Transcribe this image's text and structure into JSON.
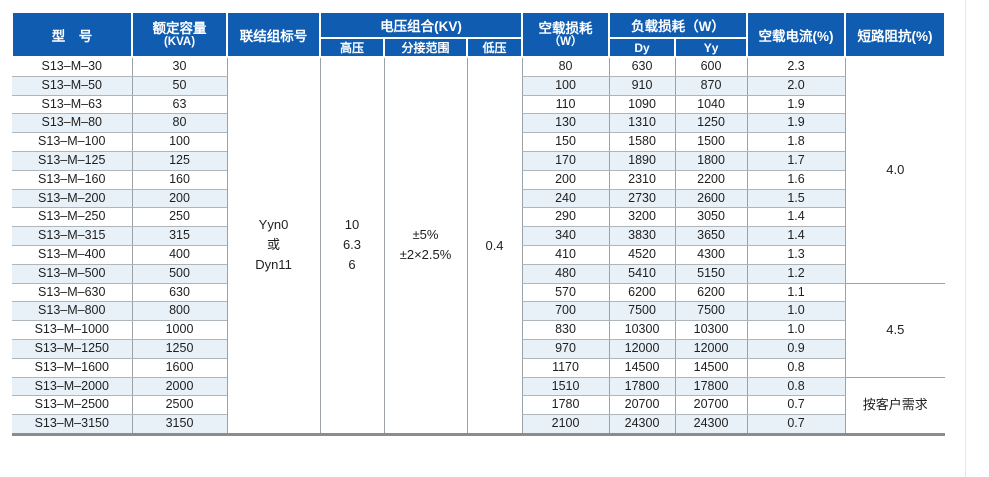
{
  "colors": {
    "header_bg": "#0f5cb0",
    "header_text": "#ffffff",
    "row_stripe": "#e8f1f8",
    "column_line": "#9aa1a7",
    "row_line": "#aeb5bb",
    "table_bottom_border": "#8c8c8c",
    "body_text": "#1f1f1f"
  },
  "table": {
    "headers": {
      "model": "型　号",
      "capacity_line1": "额定容量",
      "capacity_line2": "(KVA)",
      "vector_group": "联结组标号",
      "voltage_group": "电压组合(KV)",
      "hv": "高压",
      "tap_range": "分接范围",
      "lv": "低压",
      "no_load_loss_line1": "空载损耗",
      "no_load_loss_line2": "（W）",
      "load_loss": "负载损耗（W）",
      "dy": "Dy",
      "yy": "Yy",
      "no_load_current": "空载电流(%)",
      "impedance": "短路阻抗(%)"
    },
    "merged": {
      "vector_group": [
        "Yyn0",
        "或",
        "Dyn11"
      ],
      "hv": [
        "10",
        "6.3",
        "6"
      ],
      "tap_range": [
        "±5%",
        "±2×2.5%"
      ],
      "lv": "0.4"
    },
    "rows": [
      [
        "S13–M–30",
        "30",
        "80",
        "630",
        "600",
        "2.3"
      ],
      [
        "S13–M–50",
        "50",
        "100",
        "910",
        "870",
        "2.0"
      ],
      [
        "S13–M–63",
        "63",
        "110",
        "1090",
        "1040",
        "1.9"
      ],
      [
        "S13–M–80",
        "80",
        "130",
        "1310",
        "1250",
        "1.9"
      ],
      [
        "S13–M–100",
        "100",
        "150",
        "1580",
        "1500",
        "1.8"
      ],
      [
        "S13–M–125",
        "125",
        "170",
        "1890",
        "1800",
        "1.7"
      ],
      [
        "S13–M–160",
        "160",
        "200",
        "2310",
        "2200",
        "1.6"
      ],
      [
        "S13–M–200",
        "200",
        "240",
        "2730",
        "2600",
        "1.5"
      ],
      [
        "S13–M–250",
        "250",
        "290",
        "3200",
        "3050",
        "1.4"
      ],
      [
        "S13–M–315",
        "315",
        "340",
        "3830",
        "3650",
        "1.4"
      ],
      [
        "S13–M–400",
        "400",
        "410",
        "4520",
        "4300",
        "1.3"
      ],
      [
        "S13–M–500",
        "500",
        "480",
        "5410",
        "5150",
        "1.2"
      ],
      [
        "S13–M–630",
        "630",
        "570",
        "6200",
        "6200",
        "1.1"
      ],
      [
        "S13–M–800",
        "800",
        "700",
        "7500",
        "7500",
        "1.0"
      ],
      [
        "S13–M–1000",
        "1000",
        "830",
        "10300",
        "10300",
        "1.0"
      ],
      [
        "S13–M–1250",
        "1250",
        "970",
        "12000",
        "12000",
        "0.9"
      ],
      [
        "S13–M–1600",
        "1600",
        "1170",
        "14500",
        "14500",
        "0.8"
      ],
      [
        "S13–M–2000",
        "2000",
        "1510",
        "17800",
        "17800",
        "0.8"
      ],
      [
        "S13–M–2500",
        "2500",
        "1780",
        "20700",
        "20700",
        "0.7"
      ],
      [
        "S13–M–3150",
        "3150",
        "2100",
        "24300",
        "24300",
        "0.7"
      ]
    ],
    "impedance_groups": [
      {
        "label": "4.0",
        "start": 0,
        "span": 12
      },
      {
        "label": "4.5",
        "start": 12,
        "span": 5
      },
      {
        "label": "按客户需求",
        "start": 17,
        "span": 3
      }
    ]
  }
}
